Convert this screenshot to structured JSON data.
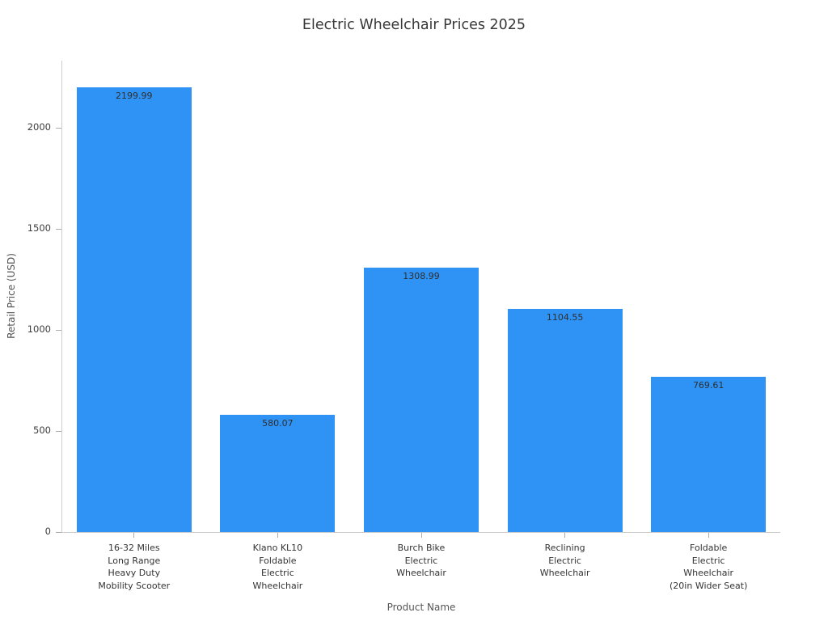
{
  "chart_data": {
    "type": "bar",
    "title": "Electric Wheelchair Prices 2025",
    "xlabel": "Product Name",
    "ylabel": "Retail Price (USD)",
    "categories": [
      "16-32 Miles\nLong Range\nHeavy Duty\nMobility Scooter",
      "Klano KL10\nFoldable\nElectric\nWheelchair",
      "Burch Bike\nElectric\nWheelchair",
      "Reclining\nElectric\nWheelchair",
      "Foldable\nElectric\nWheelchair\n(20in Wider Seat)"
    ],
    "values": [
      2199.99,
      580.07,
      1308.99,
      1104.55,
      769.61
    ],
    "value_labels": [
      "2199.99",
      "580.07",
      "1308.99",
      "1104.55",
      "769.61"
    ],
    "yticks": [
      0,
      500,
      1000,
      1500,
      2000
    ],
    "ylim": [
      0,
      2332
    ],
    "grid": false,
    "legend": null,
    "bar_color": "#2e93f5",
    "spine_color": "#cccccc",
    "tick_color": "#ababab",
    "tick_label_color": "#3d3d3d",
    "title_color": "#383838",
    "axis_title_color": "#555555",
    "category_label_color": "#333333",
    "value_label_color": "#2f2f2f",
    "background_color": "#ffffff"
  }
}
